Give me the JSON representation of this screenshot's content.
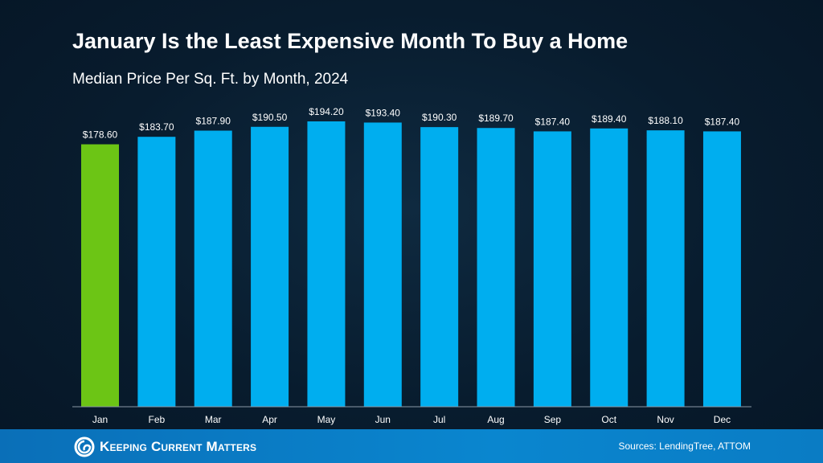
{
  "chart_data": {
    "type": "bar",
    "title": "January Is the Least Expensive Month To Buy a Home",
    "subtitle": "Median Price Per Sq. Ft. by Month, 2024",
    "categories": [
      "Jan",
      "Feb",
      "Mar",
      "Apr",
      "May",
      "Jun",
      "Jul",
      "Aug",
      "Sep",
      "Oct",
      "Nov",
      "Dec"
    ],
    "values": [
      178.6,
      183.7,
      187.9,
      190.5,
      194.2,
      193.4,
      190.3,
      189.7,
      187.4,
      189.4,
      188.1,
      187.4
    ],
    "labels": [
      "$178.60",
      "$183.70",
      "$187.90",
      "$190.50",
      "$194.20",
      "$193.40",
      "$190.30",
      "$189.70",
      "$187.40",
      "$189.40",
      "$188.10",
      "$187.40"
    ],
    "ylim": [
      0,
      194.2
    ],
    "grid": false,
    "colors": {
      "highlight": "#6cc515",
      "default": "#00aeef"
    },
    "highlight_category": "Jan"
  },
  "footer": {
    "brand": "Keeping Current Matters",
    "sources": "Sources: LendingTree, ATTOM"
  }
}
